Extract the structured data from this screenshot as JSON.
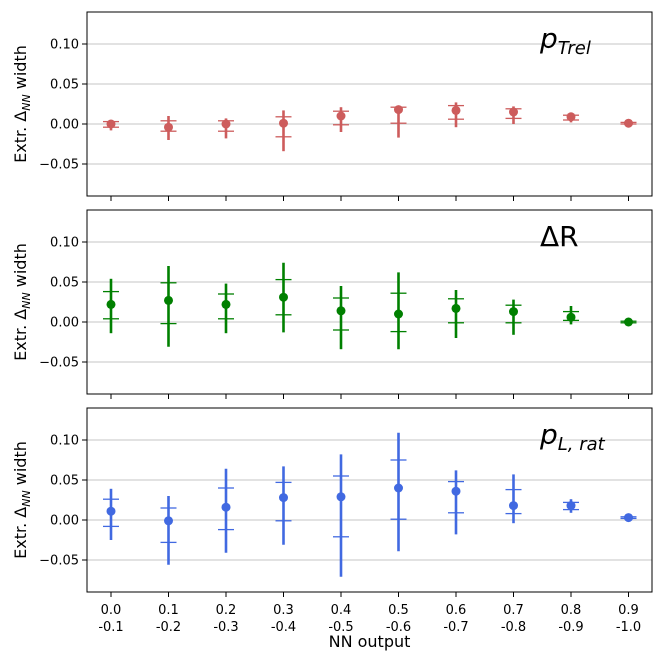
{
  "chart_data": [
    {
      "type": "scatter",
      "annotation": {
        "main": "p",
        "sub": "Trel",
        "upright_main": false
      },
      "ylabel": {
        "main": "Extr. Δ",
        "sub": "NN",
        "rest": " width"
      },
      "ylim": [
        -0.09,
        0.14
      ],
      "yticks": [
        -0.05,
        0.0,
        0.05,
        0.1
      ],
      "yticklabels": [
        "−0.05",
        "0.00",
        "0.05",
        "0.10"
      ],
      "grid": "horizontal",
      "color": "#cd5c5c",
      "points": [
        {
          "x": 0,
          "y": 0.0,
          "outer": [
            -0.008,
            0.002
          ],
          "inner": [
            -0.004,
            0.003
          ]
        },
        {
          "x": 1,
          "y": -0.004,
          "outer": [
            -0.02,
            0.01
          ],
          "inner": [
            -0.009,
            0.004
          ]
        },
        {
          "x": 2,
          "y": 0.0,
          "outer": [
            -0.018,
            0.007
          ],
          "inner": [
            -0.009,
            0.004
          ]
        },
        {
          "x": 3,
          "y": 0.001,
          "outer": [
            -0.034,
            0.017
          ],
          "inner": [
            -0.016,
            0.009
          ]
        },
        {
          "x": 4,
          "y": 0.01,
          "outer": [
            -0.01,
            0.021
          ],
          "inner": [
            -0.001,
            0.016
          ]
        },
        {
          "x": 5,
          "y": 0.018,
          "outer": [
            -0.017,
            0.023
          ],
          "inner": [
            0.001,
            0.021
          ]
        },
        {
          "x": 6,
          "y": 0.017,
          "outer": [
            -0.004,
            0.027
          ],
          "inner": [
            0.006,
            0.023
          ]
        },
        {
          "x": 7,
          "y": 0.015,
          "outer": [
            0.0,
            0.022
          ],
          "inner": [
            0.007,
            0.019
          ]
        },
        {
          "x": 8,
          "y": 0.009,
          "outer": [
            0.002,
            0.013
          ],
          "inner": [
            0.005,
            0.011
          ]
        },
        {
          "x": 9,
          "y": 0.001,
          "outer": [
            -0.001,
            0.003
          ],
          "inner": [
            0.0,
            0.002
          ]
        }
      ]
    },
    {
      "type": "scatter",
      "annotation": {
        "main": "ΔR",
        "sub": "",
        "upright_main": true
      },
      "ylabel": {
        "main": "Extr. Δ",
        "sub": "NN",
        "rest": " width"
      },
      "ylim": [
        -0.09,
        0.14
      ],
      "yticks": [
        -0.05,
        0.0,
        0.05,
        0.1
      ],
      "yticklabels": [
        "−0.05",
        "0.00",
        "0.05",
        "0.10"
      ],
      "grid": "horizontal",
      "color": "#008000",
      "points": [
        {
          "x": 0,
          "y": 0.022,
          "outer": [
            -0.014,
            0.054
          ],
          "inner": [
            0.004,
            0.038
          ]
        },
        {
          "x": 1,
          "y": 0.027,
          "outer": [
            -0.031,
            0.07
          ],
          "inner": [
            -0.002,
            0.049
          ]
        },
        {
          "x": 2,
          "y": 0.022,
          "outer": [
            -0.014,
            0.048
          ],
          "inner": [
            0.004,
            0.035
          ]
        },
        {
          "x": 3,
          "y": 0.031,
          "outer": [
            -0.013,
            0.074
          ],
          "inner": [
            0.009,
            0.053
          ]
        },
        {
          "x": 4,
          "y": 0.014,
          "outer": [
            -0.034,
            0.045
          ],
          "inner": [
            -0.01,
            0.03
          ]
        },
        {
          "x": 5,
          "y": 0.01,
          "outer": [
            -0.034,
            0.062
          ],
          "inner": [
            -0.012,
            0.036
          ]
        },
        {
          "x": 6,
          "y": 0.017,
          "outer": [
            -0.02,
            0.04
          ],
          "inner": [
            -0.001,
            0.029
          ]
        },
        {
          "x": 7,
          "y": 0.013,
          "outer": [
            -0.016,
            0.028
          ],
          "inner": [
            -0.001,
            0.021
          ]
        },
        {
          "x": 8,
          "y": 0.006,
          "outer": [
            -0.003,
            0.02
          ],
          "inner": [
            0.002,
            0.013
          ]
        },
        {
          "x": 9,
          "y": 0.0,
          "outer": [
            -0.001,
            0.002
          ],
          "inner": [
            -0.001,
            0.001
          ]
        }
      ]
    },
    {
      "type": "scatter",
      "annotation": {
        "main": "p",
        "sub": "L, rat",
        "upright_main": false
      },
      "ylabel": {
        "main": "Extr. Δ",
        "sub": "NN",
        "rest": " width"
      },
      "xlabel": "NN output",
      "ylim": [
        -0.09,
        0.14
      ],
      "yticks": [
        -0.05,
        0.0,
        0.05,
        0.1
      ],
      "yticklabels": [
        "−0.05",
        "0.00",
        "0.05",
        "0.10"
      ],
      "grid": "horizontal",
      "color": "#4169e1",
      "categories": [
        [
          "0.0",
          "-0.1"
        ],
        [
          "0.1",
          "-0.2"
        ],
        [
          "0.2",
          "-0.3"
        ],
        [
          "0.3",
          "-0.4"
        ],
        [
          "0.4",
          "-0.5"
        ],
        [
          "0.5",
          "-0.6"
        ],
        [
          "0.6",
          "-0.7"
        ],
        [
          "0.7",
          "-0.8"
        ],
        [
          "0.8",
          "-0.9"
        ],
        [
          "0.9",
          "-1.0"
        ]
      ],
      "points": [
        {
          "x": 0,
          "y": 0.011,
          "outer": [
            -0.025,
            0.039
          ],
          "inner": [
            -0.008,
            0.026
          ]
        },
        {
          "x": 1,
          "y": -0.001,
          "outer": [
            -0.056,
            0.03
          ],
          "inner": [
            -0.028,
            0.015
          ]
        },
        {
          "x": 2,
          "y": 0.016,
          "outer": [
            -0.041,
            0.064
          ],
          "inner": [
            -0.012,
            0.04
          ]
        },
        {
          "x": 3,
          "y": 0.028,
          "outer": [
            -0.031,
            0.067
          ],
          "inner": [
            -0.001,
            0.047
          ]
        },
        {
          "x": 4,
          "y": 0.029,
          "outer": [
            -0.071,
            0.082
          ],
          "inner": [
            -0.021,
            0.055
          ]
        },
        {
          "x": 5,
          "y": 0.04,
          "outer": [
            -0.039,
            0.109
          ],
          "inner": [
            0.001,
            0.075
          ]
        },
        {
          "x": 6,
          "y": 0.036,
          "outer": [
            -0.018,
            0.062
          ],
          "inner": [
            0.009,
            0.048
          ]
        },
        {
          "x": 7,
          "y": 0.018,
          "outer": [
            -0.004,
            0.057
          ],
          "inner": [
            0.008,
            0.038
          ]
        },
        {
          "x": 8,
          "y": 0.018,
          "outer": [
            0.009,
            0.026
          ],
          "inner": [
            0.013,
            0.022
          ]
        },
        {
          "x": 9,
          "y": 0.003,
          "outer": [
            0.001,
            0.005
          ],
          "inner": [
            0.002,
            0.004
          ]
        }
      ]
    }
  ]
}
